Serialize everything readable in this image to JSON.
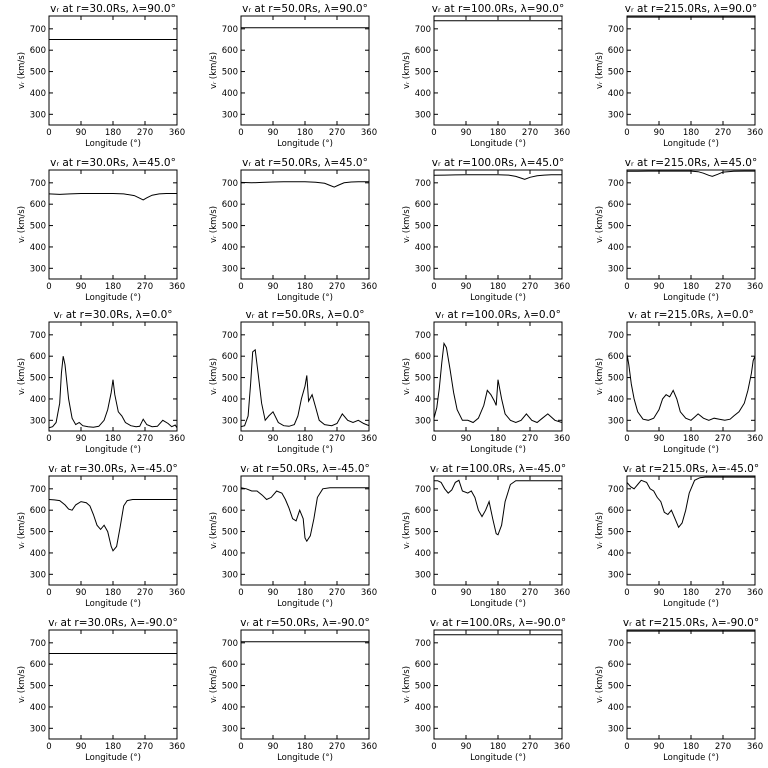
{
  "figure": {
    "xlabel": "Longitude (°)",
    "ylabel": "vᵣ (km/s)",
    "xticks": [
      0,
      90,
      180,
      270,
      360
    ],
    "yticks": [
      300,
      400,
      500,
      600,
      700
    ]
  },
  "chart_data": [
    {
      "type": "line",
      "title": "vᵣ at r=30.0Rs, λ=90.0°",
      "xlabel": "Longitude (°)",
      "ylabel": "vᵣ (km/s)",
      "xlim": [
        0,
        360
      ],
      "ylim": [
        250,
        760
      ],
      "x": [
        0,
        360
      ],
      "y": [
        650,
        650
      ]
    },
    {
      "type": "line",
      "title": "vᵣ at r=50.0Rs, λ=90.0°",
      "xlabel": "Longitude (°)",
      "ylabel": "vᵣ (km/s)",
      "xlim": [
        0,
        360
      ],
      "ylim": [
        250,
        760
      ],
      "x": [
        0,
        360
      ],
      "y": [
        705,
        705
      ]
    },
    {
      "type": "line",
      "title": "vᵣ at r=100.0Rs, λ=90.0°",
      "xlabel": "Longitude (°)",
      "ylabel": "vᵣ (km/s)",
      "xlim": [
        0,
        360
      ],
      "ylim": [
        250,
        760
      ],
      "x": [
        0,
        360
      ],
      "y": [
        738,
        738
      ]
    },
    {
      "type": "line",
      "title": "vᵣ at r=215.0Rs, λ=90.0°",
      "xlabel": "Longitude (°)",
      "ylabel": "vᵣ (km/s)",
      "xlim": [
        0,
        360
      ],
      "ylim": [
        250,
        760
      ],
      "x": [
        0,
        360
      ],
      "y": [
        755,
        755
      ]
    },
    {
      "type": "line",
      "title": "vᵣ at r=30.0Rs, λ=45.0°",
      "xlabel": "Longitude (°)",
      "ylabel": "vᵣ (km/s)",
      "xlim": [
        0,
        360
      ],
      "ylim": [
        250,
        760
      ],
      "x": [
        0,
        30,
        60,
        90,
        120,
        150,
        180,
        210,
        240,
        255,
        265,
        275,
        290,
        310,
        330,
        360
      ],
      "y": [
        648,
        646,
        648,
        650,
        650,
        650,
        650,
        648,
        640,
        628,
        620,
        630,
        642,
        648,
        650,
        650
      ]
    },
    {
      "type": "line",
      "title": "vᵣ at r=50.0Rs, λ=45.0°",
      "xlabel": "Longitude (°)",
      "ylabel": "vᵣ (km/s)",
      "xlim": [
        0,
        360
      ],
      "ylim": [
        250,
        760
      ],
      "x": [
        0,
        30,
        60,
        90,
        120,
        150,
        180,
        210,
        235,
        250,
        262,
        275,
        290,
        310,
        330,
        360
      ],
      "y": [
        702,
        700,
        702,
        704,
        705,
        705,
        705,
        703,
        698,
        688,
        680,
        690,
        700,
        704,
        705,
        705
      ]
    },
    {
      "type": "line",
      "title": "vᵣ at r=100.0Rs, λ=45.0°",
      "xlabel": "Longitude (°)",
      "ylabel": "vᵣ (km/s)",
      "xlim": [
        0,
        360
      ],
      "ylim": [
        250,
        760
      ],
      "x": [
        0,
        30,
        60,
        90,
        120,
        150,
        180,
        210,
        230,
        245,
        255,
        270,
        290,
        310,
        330,
        360
      ],
      "y": [
        735,
        736,
        737,
        738,
        738,
        738,
        738,
        736,
        730,
        722,
        716,
        726,
        733,
        736,
        738,
        738
      ]
    },
    {
      "type": "line",
      "title": "vᵣ at r=215.0Rs, λ=45.0°",
      "xlabel": "Longitude (°)",
      "ylabel": "vᵣ (km/s)",
      "xlim": [
        0,
        360
      ],
      "ylim": [
        250,
        760
      ],
      "x": [
        0,
        30,
        60,
        90,
        120,
        150,
        180,
        200,
        215,
        230,
        240,
        255,
        270,
        300,
        330,
        360
      ],
      "y": [
        754,
        754,
        755,
        755,
        755,
        755,
        755,
        752,
        745,
        735,
        730,
        740,
        750,
        754,
        755,
        755
      ]
    },
    {
      "type": "line",
      "title": "vᵣ at r=30.0Rs, λ=0.0°",
      "xlabel": "Longitude (°)",
      "ylabel": "vᵣ (km/s)",
      "xlim": [
        0,
        360
      ],
      "ylim": [
        250,
        760
      ],
      "x": [
        0,
        10,
        20,
        30,
        35,
        40,
        45,
        55,
        65,
        75,
        85,
        95,
        110,
        125,
        140,
        155,
        165,
        175,
        180,
        185,
        195,
        205,
        215,
        230,
        245,
        255,
        265,
        275,
        290,
        305,
        320,
        335,
        345,
        355,
        360
      ],
      "y": [
        265,
        270,
        290,
        380,
        520,
        600,
        560,
        400,
        310,
        280,
        290,
        275,
        270,
        268,
        272,
        300,
        350,
        430,
        490,
        420,
        340,
        320,
        290,
        275,
        270,
        272,
        305,
        280,
        270,
        272,
        300,
        285,
        270,
        278,
        265
      ]
    },
    {
      "type": "line",
      "title": "vᵣ at r=50.0Rs, λ=0.0°",
      "xlabel": "Longitude (°)",
      "ylabel": "vᵣ (km/s)",
      "xlim": [
        0,
        360
      ],
      "ylim": [
        250,
        760
      ],
      "x": [
        0,
        10,
        20,
        27,
        33,
        40,
        48,
        58,
        68,
        78,
        90,
        105,
        120,
        135,
        150,
        160,
        170,
        180,
        185,
        190,
        200,
        210,
        220,
        235,
        255,
        270,
        285,
        300,
        315,
        330,
        345,
        360
      ],
      "y": [
        270,
        275,
        320,
        470,
        620,
        630,
        520,
        380,
        300,
        320,
        340,
        290,
        275,
        272,
        280,
        320,
        400,
        460,
        510,
        390,
        420,
        360,
        300,
        280,
        275,
        285,
        330,
        300,
        290,
        300,
        285,
        275
      ]
    },
    {
      "type": "line",
      "title": "vᵣ at r=100.0Rs, λ=0.0°",
      "xlabel": "Longitude (°)",
      "ylabel": "vᵣ (km/s)",
      "xlim": [
        0,
        360
      ],
      "ylim": [
        250,
        760
      ],
      "x": [
        0,
        8,
        15,
        22,
        28,
        35,
        45,
        55,
        65,
        80,
        95,
        110,
        125,
        140,
        150,
        160,
        170,
        175,
        180,
        190,
        200,
        215,
        230,
        245,
        260,
        275,
        290,
        305,
        320,
        340,
        360
      ],
      "y": [
        310,
        360,
        450,
        570,
        660,
        640,
        540,
        430,
        350,
        300,
        300,
        290,
        310,
        370,
        440,
        420,
        390,
        370,
        490,
        400,
        330,
        300,
        290,
        300,
        330,
        300,
        290,
        310,
        330,
        300,
        290
      ]
    },
    {
      "type": "line",
      "title": "vᵣ at r=215.0Rs, λ=0.0°",
      "xlabel": "Longitude (°)",
      "ylabel": "vᵣ (km/s)",
      "xlim": [
        0,
        360
      ],
      "ylim": [
        250,
        760
      ],
      "x": [
        0,
        5,
        12,
        20,
        30,
        45,
        60,
        75,
        90,
        100,
        110,
        120,
        130,
        140,
        150,
        165,
        180,
        190,
        200,
        215,
        230,
        245,
        260,
        275,
        290,
        300,
        315,
        330,
        340,
        350,
        355,
        360
      ],
      "y": [
        610,
        560,
        470,
        400,
        340,
        305,
        300,
        310,
        350,
        400,
        420,
        410,
        440,
        400,
        340,
        310,
        300,
        315,
        330,
        310,
        300,
        310,
        305,
        300,
        305,
        320,
        340,
        380,
        440,
        520,
        580,
        600
      ]
    },
    {
      "type": "line",
      "title": "vᵣ at r=30.0Rs, λ=-45.0°",
      "xlabel": "Longitude (°)",
      "ylabel": "vᵣ (km/s)",
      "xlim": [
        0,
        360
      ],
      "ylim": [
        250,
        760
      ],
      "x": [
        0,
        15,
        30,
        45,
        55,
        65,
        75,
        90,
        105,
        115,
        125,
        135,
        145,
        155,
        165,
        175,
        180,
        190,
        200,
        210,
        220,
        235,
        250,
        270,
        300,
        330,
        360
      ],
      "y": [
        650,
        648,
        645,
        625,
        605,
        600,
        625,
        640,
        635,
        620,
        580,
        530,
        510,
        530,
        500,
        430,
        410,
        430,
        520,
        620,
        645,
        650,
        650,
        650,
        650,
        650,
        650
      ]
    },
    {
      "type": "line",
      "title": "vᵣ at r=50.0Rs, λ=-45.0°",
      "xlabel": "Longitude (°)",
      "ylabel": "vᵣ (km/s)",
      "xlim": [
        0,
        360
      ],
      "ylim": [
        250,
        760
      ],
      "x": [
        0,
        15,
        30,
        45,
        60,
        72,
        85,
        100,
        115,
        125,
        135,
        145,
        155,
        165,
        175,
        180,
        185,
        195,
        205,
        215,
        230,
        250,
        270,
        300,
        330,
        360
      ],
      "y": [
        705,
        700,
        690,
        690,
        670,
        650,
        660,
        690,
        680,
        650,
        610,
        560,
        550,
        600,
        560,
        470,
        455,
        480,
        560,
        660,
        700,
        705,
        705,
        705,
        705,
        705
      ]
    },
    {
      "type": "line",
      "title": "vᵣ at r=100.0Rs, λ=-45.0°",
      "xlabel": "Longitude (°)",
      "ylabel": "vᵣ (km/s)",
      "xlim": [
        0,
        360
      ],
      "ylim": [
        250,
        760
      ],
      "x": [
        0,
        10,
        20,
        30,
        40,
        50,
        60,
        70,
        80,
        95,
        105,
        115,
        125,
        135,
        145,
        155,
        165,
        175,
        180,
        190,
        200,
        215,
        230,
        260,
        300,
        330,
        360
      ],
      "y": [
        738,
        738,
        730,
        700,
        680,
        695,
        730,
        740,
        690,
        680,
        690,
        660,
        600,
        570,
        600,
        640,
        560,
        490,
        485,
        530,
        640,
        720,
        738,
        738,
        738,
        738,
        738
      ]
    },
    {
      "type": "line",
      "title": "vᵣ at r=215.0Rs, λ=-45.0°",
      "xlabel": "Longitude (°)",
      "ylabel": "vᵣ (km/s)",
      "xlim": [
        0,
        360
      ],
      "ylim": [
        250,
        760
      ],
      "x": [
        0,
        10,
        20,
        30,
        40,
        55,
        65,
        75,
        85,
        95,
        105,
        115,
        125,
        135,
        145,
        155,
        165,
        175,
        190,
        205,
        220,
        240,
        270,
        300,
        330,
        360
      ],
      "y": [
        730,
        710,
        700,
        720,
        740,
        730,
        700,
        690,
        660,
        640,
        590,
        580,
        600,
        560,
        520,
        540,
        600,
        680,
        740,
        752,
        755,
        755,
        755,
        755,
        755,
        755
      ]
    },
    {
      "type": "line",
      "title": "vᵣ at r=30.0Rs, λ=-90.0°",
      "xlabel": "Longitude (°)",
      "ylabel": "vᵣ (km/s)",
      "xlim": [
        0,
        360
      ],
      "ylim": [
        250,
        760
      ],
      "x": [
        0,
        360
      ],
      "y": [
        650,
        650
      ]
    },
    {
      "type": "line",
      "title": "vᵣ at r=50.0Rs, λ=-90.0°",
      "xlabel": "Longitude (°)",
      "ylabel": "vᵣ (km/s)",
      "xlim": [
        0,
        360
      ],
      "ylim": [
        250,
        760
      ],
      "x": [
        0,
        360
      ],
      "y": [
        705,
        705
      ]
    },
    {
      "type": "line",
      "title": "vᵣ at r=100.0Rs, λ=-90.0°",
      "xlabel": "Longitude (°)",
      "ylabel": "vᵣ (km/s)",
      "xlim": [
        0,
        360
      ],
      "ylim": [
        250,
        760
      ],
      "x": [
        0,
        360
      ],
      "y": [
        738,
        738
      ]
    },
    {
      "type": "line",
      "title": "vᵣ at r=215.0Rs, λ=-90.0°",
      "xlabel": "Longitude (°)",
      "ylabel": "vᵣ (km/s)",
      "xlim": [
        0,
        360
      ],
      "ylim": [
        250,
        760
      ],
      "x": [
        0,
        360
      ],
      "y": [
        755,
        755
      ]
    }
  ]
}
